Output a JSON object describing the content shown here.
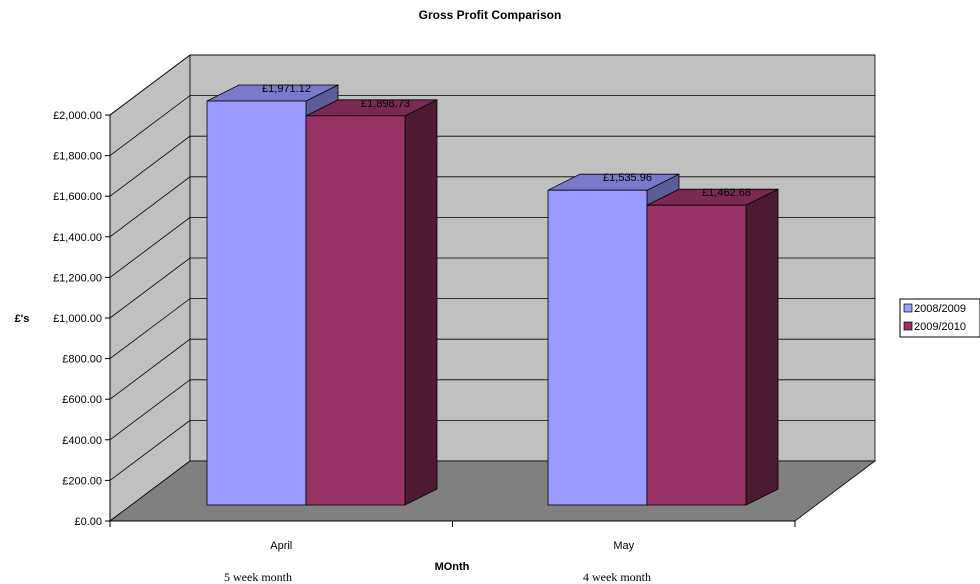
{
  "chart_data": {
    "type": "bar",
    "title": "Gross Profit Comparison",
    "xlabel": "MOnth",
    "ylabel": "£'s",
    "categories": [
      "April",
      "May"
    ],
    "category_notes": [
      "5 week month",
      "4 week month"
    ],
    "series": [
      {
        "name": "2008/2009",
        "values": [
          1971.12,
          1535.96
        ],
        "labels": [
          "£1,971.12",
          "£1,535.96"
        ]
      },
      {
        "name": "2009/2010",
        "values": [
          1898.73,
          1462.68
        ],
        "labels": [
          "£1,898.73",
          "£1,462.68"
        ]
      }
    ],
    "ylim": [
      0,
      2000
    ],
    "yticks": [
      0,
      200,
      400,
      600,
      800,
      1000,
      1200,
      1400,
      1600,
      1800,
      2000
    ],
    "ytick_labels": [
      "£0.00",
      "£200.00",
      "£400.00",
      "£600.00",
      "£800.00",
      "£1,000.00",
      "£1,200.00",
      "£1,400.00",
      "£1,600.00",
      "£1,800.00",
      "£2,000.00"
    ],
    "grid": true,
    "legend": "right",
    "colors": {
      "series": [
        "#9999ff",
        "#993366"
      ],
      "series_top": [
        "#7a7acc",
        "#7a2952"
      ],
      "series_side": [
        "#5c5c99",
        "#4d1a33"
      ],
      "back_wall": "#c0c0c0",
      "side_wall": "#c0c0c0",
      "floor": "#808080"
    }
  }
}
